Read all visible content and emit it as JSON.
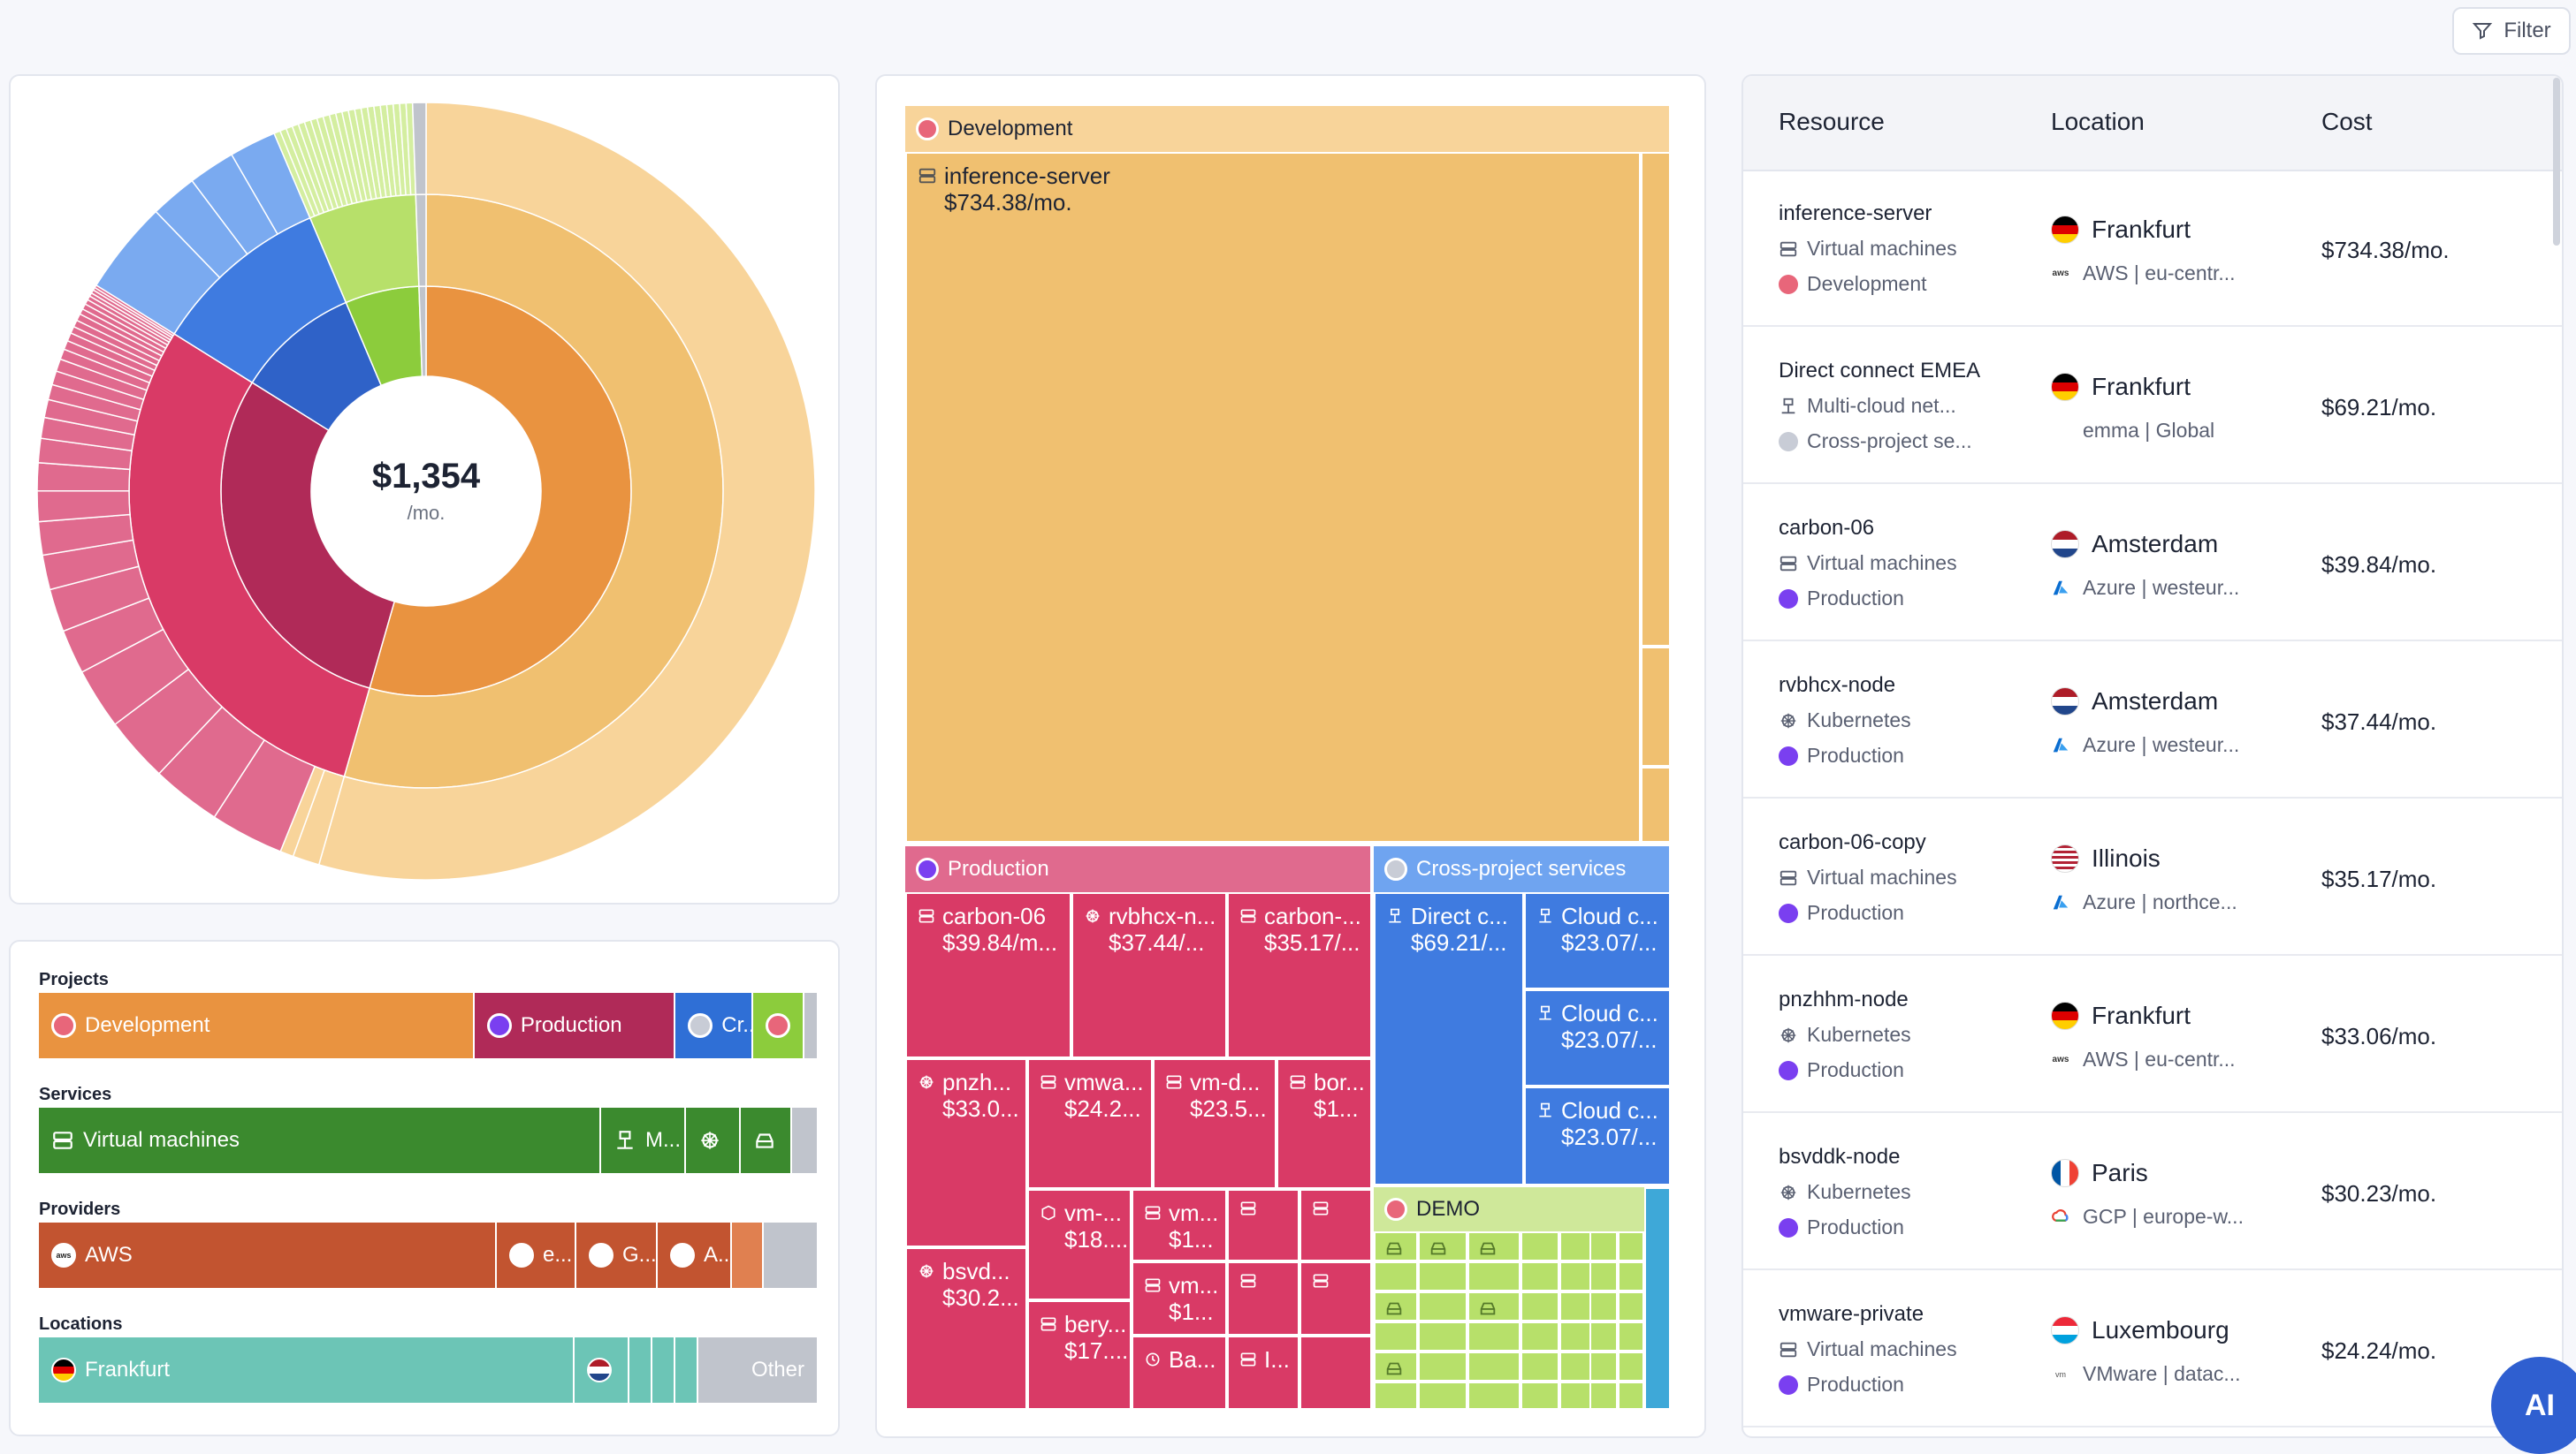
{
  "toolbar": {
    "filter_label": "Filter"
  },
  "summary": {
    "total": "$1,354",
    "unit": "/mo."
  },
  "colors": {
    "development_light": "#f8d49a",
    "development_mid": "#f0c070",
    "development": "#e99340",
    "production": "#d93a66",
    "production_dark": "#b02a58",
    "production_light": "#e06a8e",
    "cross_project": "#2f6fd6",
    "cross_light": "#6fa4f0",
    "demo": "#b7e06a",
    "demo_dark": "#8ccc3c",
    "vm_green": "#3b8a2e",
    "aws": "#c25430",
    "frankfurt": "#6cc5b6",
    "other": "#c0c4cc"
  },
  "breakdown": {
    "projects": {
      "title": "Projects",
      "items": [
        "Development",
        "Production",
        "Cr..."
      ]
    },
    "services": {
      "title": "Services",
      "items": [
        "Virtual machines",
        "M..."
      ]
    },
    "providers": {
      "title": "Providers",
      "items": [
        "AWS",
        "e...",
        "G...",
        "A..."
      ]
    },
    "locations": {
      "title": "Locations",
      "items": [
        "Frankfurt"
      ],
      "other": "Other"
    }
  },
  "treemap": {
    "development": {
      "label": "Development",
      "leaf_name": "inference-server",
      "leaf_cost": "$734.38/mo."
    },
    "production": {
      "label": "Production",
      "leaves": [
        {
          "name": "carbon-06",
          "cost": "$39.84/m..."
        },
        {
          "name": "rvbhcx-n...",
          "cost": "$37.44/..."
        },
        {
          "name": "carbon-...",
          "cost": "$35.17/..."
        },
        {
          "name": "pnzh...",
          "cost": "$33.0..."
        },
        {
          "name": "vmwa...",
          "cost": "$24.2..."
        },
        {
          "name": "vm-d...",
          "cost": "$23.5..."
        },
        {
          "name": "bor...",
          "cost": "$1..."
        },
        {
          "name": "bsvd...",
          "cost": "$30.2..."
        },
        {
          "name": "vm-...",
          "cost": "$18...."
        },
        {
          "name": "vm...",
          "cost": "$1..."
        },
        {
          "name": "bery...",
          "cost": "$17...."
        },
        {
          "name": "vm...",
          "cost": "$1..."
        },
        {
          "name": "Ba...",
          "cost": ""
        },
        {
          "name": "I...",
          "cost": ""
        }
      ]
    },
    "cross": {
      "label": "Cross-project services",
      "leaves": [
        {
          "name": "Direct c...",
          "cost": "$69.21/..."
        },
        {
          "name": "Cloud c...",
          "cost": "$23.07/..."
        },
        {
          "name": "Cloud c...",
          "cost": "$23.07/..."
        },
        {
          "name": "Cloud c...",
          "cost": "$23.07/..."
        }
      ]
    },
    "demo": {
      "label": "DEMO"
    }
  },
  "table": {
    "headers": {
      "resource": "Resource",
      "location": "Location",
      "cost": "Cost"
    },
    "rows": [
      {
        "name": "inference-server",
        "service": "Virtual machines",
        "service_icon": "server-icon",
        "project": "Development",
        "project_color": "#e8667a",
        "city": "Frankfurt",
        "flag": "de",
        "provider": "AWS | eu-centr...",
        "provider_icon": "aws-icon",
        "cost": "$734.38/mo."
      },
      {
        "name": "Direct connect EMEA",
        "service": "Multi-cloud net...",
        "service_icon": "network-icon",
        "project": "Cross-project se...",
        "project_color": "#c8ccd6",
        "city": "Frankfurt",
        "flag": "de",
        "provider": "emma | Global",
        "provider_icon": "emma-icon",
        "cost": "$69.21/mo."
      },
      {
        "name": "carbon-06",
        "service": "Virtual machines",
        "service_icon": "server-icon",
        "project": "Production",
        "project_color": "#7a3ff0",
        "city": "Amsterdam",
        "flag": "nl",
        "provider": "Azure | westeur...",
        "provider_icon": "azure-icon",
        "cost": "$39.84/mo."
      },
      {
        "name": "rvbhcx-node",
        "service": "Kubernetes",
        "service_icon": "kubernetes-icon",
        "project": "Production",
        "project_color": "#7a3ff0",
        "city": "Amsterdam",
        "flag": "nl",
        "provider": "Azure | westeur...",
        "provider_icon": "azure-icon",
        "cost": "$37.44/mo."
      },
      {
        "name": "carbon-06-copy",
        "service": "Virtual machines",
        "service_icon": "server-icon",
        "project": "Production",
        "project_color": "#7a3ff0",
        "city": "Illinois",
        "flag": "us",
        "provider": "Azure | northce...",
        "provider_icon": "azure-icon",
        "cost": "$35.17/mo."
      },
      {
        "name": "pnzhhm-node",
        "service": "Kubernetes",
        "service_icon": "kubernetes-icon",
        "project": "Production",
        "project_color": "#7a3ff0",
        "city": "Frankfurt",
        "flag": "de",
        "provider": "AWS | eu-centr...",
        "provider_icon": "aws-icon",
        "cost": "$33.06/mo."
      },
      {
        "name": "bsvddk-node",
        "service": "Kubernetes",
        "service_icon": "kubernetes-icon",
        "project": "Production",
        "project_color": "#7a3ff0",
        "city": "Paris",
        "flag": "fr",
        "provider": "GCP | europe-w...",
        "provider_icon": "gcp-icon",
        "cost": "$30.23/mo."
      },
      {
        "name": "vmware-private",
        "service": "Virtual machines",
        "service_icon": "server-icon",
        "project": "Production",
        "project_color": "#7a3ff0",
        "city": "Luxembourg",
        "flag": "lu",
        "provider": "VMware | datac...",
        "provider_icon": "vmware-icon",
        "cost": "$24.24/mo."
      }
    ]
  },
  "ai_fab": {
    "label": "AI"
  }
}
